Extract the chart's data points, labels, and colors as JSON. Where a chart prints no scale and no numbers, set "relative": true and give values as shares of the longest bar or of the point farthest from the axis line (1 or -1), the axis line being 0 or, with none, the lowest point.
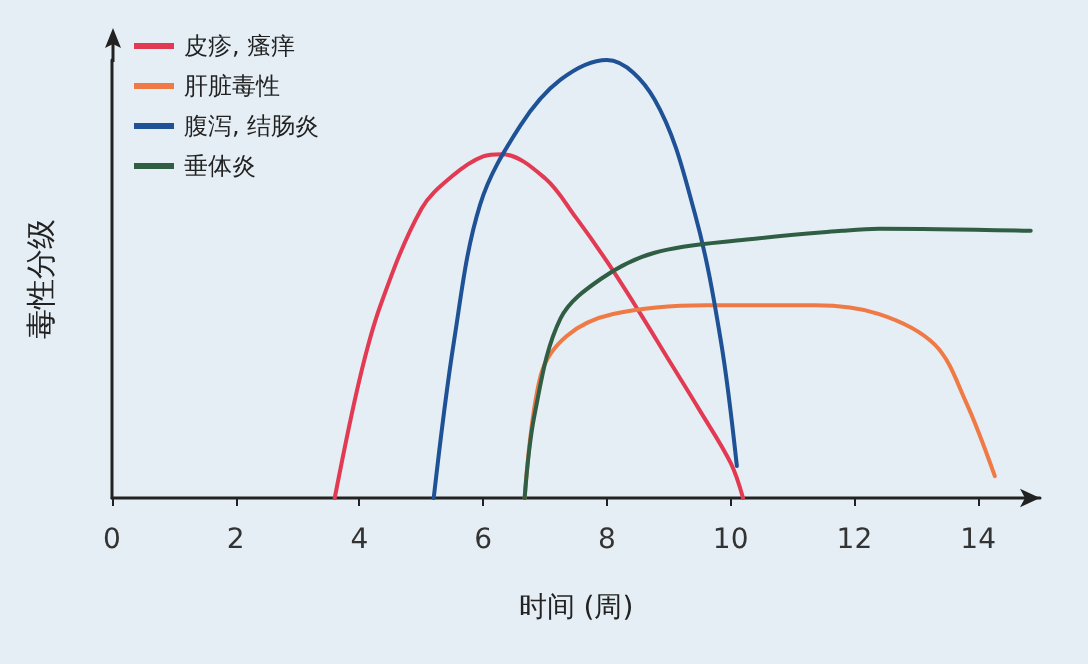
{
  "chart_data": {
    "type": "line",
    "xlabel": "时间 (周)",
    "ylabel": "毒性分级",
    "relative": true,
    "xlim": [
      0,
      15
    ],
    "xticks": [
      0,
      2,
      4,
      6,
      8,
      10,
      12,
      14
    ],
    "grid": false,
    "legend": "top left",
    "marker": "none",
    "line_style": "solid",
    "series": [
      {
        "name": "皮疹, 瘙痒",
        "color": "#e23a52",
        "x": [
          3.6,
          4,
          4.34,
          5,
          5.5,
          6,
          6.3,
          7,
          7.5,
          8,
          8.5,
          9,
          9.5,
          10,
          10.2
        ],
        "values": [
          0,
          0.27,
          0.44,
          0.66,
          0.735,
          0.78,
          0.785,
          0.73,
          0.64,
          0.54,
          0.43,
          0.315,
          0.2,
          0.08,
          0
        ]
      },
      {
        "name": "肝脏毒性",
        "color": "#ef7a45",
        "x": [
          6.67,
          6.93,
          7.35,
          8.1,
          9.6,
          11.36,
          12.4,
          13.3,
          13.8,
          14.27
        ],
        "values": [
          0,
          0.28,
          0.37,
          0.42,
          0.44,
          0.44,
          0.42,
          0.35,
          0.22,
          0.05
        ]
      },
      {
        "name": "腹泻, 结肠炎",
        "color": "#1f5196",
        "x": [
          5.2,
          5.53,
          5.95,
          6.6,
          7.25,
          8,
          8.77,
          9.42,
          9.84,
          10.1
        ],
        "values": [
          0,
          0.36,
          0.67,
          0.85,
          0.955,
          1,
          0.91,
          0.65,
          0.36,
          0.073
        ]
      },
      {
        "name": "垂体炎",
        "color": "#2f5e44",
        "x": [
          6.67,
          6.83,
          7.25,
          7.9,
          8.77,
          10.26,
          11.8,
          12.4,
          14.85
        ],
        "values": [
          0,
          0.19,
          0.41,
          0.5,
          0.56,
          0.59,
          0.61,
          0.615,
          0.61
        ]
      }
    ]
  }
}
